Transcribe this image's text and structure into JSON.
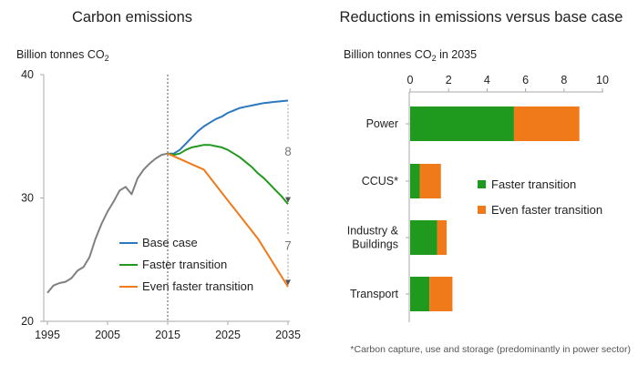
{
  "chart_data": [
    {
      "type": "line",
      "title": "Carbon emissions",
      "ylabel_main": "Billion tonnes CO",
      "ylabel_sub": "2",
      "xlim": [
        1995,
        2035
      ],
      "ylim": [
        20,
        40
      ],
      "x_ticks": [
        "1995",
        "2005",
        "2015",
        "2025",
        "2035"
      ],
      "y_ticks": [
        "20",
        "30",
        "40"
      ],
      "divider_year": 2015,
      "series": [
        {
          "name": "",
          "color": "#808080",
          "x": [
            1995,
            1996,
            1997,
            1998,
            1999,
            2000,
            2001,
            2002,
            2003,
            2004,
            2005,
            2006,
            2007,
            2008,
            2009,
            2010,
            2011,
            2012,
            2013,
            2014,
            2015
          ],
          "y": [
            22.3,
            22.9,
            23.1,
            23.2,
            23.5,
            24.1,
            24.4,
            25.2,
            26.7,
            27.9,
            28.9,
            29.7,
            30.6,
            30.9,
            30.3,
            31.6,
            32.3,
            32.8,
            33.2,
            33.5,
            33.6
          ]
        },
        {
          "name": "Base case",
          "color": "#2b78c0",
          "x": [
            2015,
            2016,
            2017,
            2018,
            2019,
            2020,
            2021,
            2022,
            2023,
            2024,
            2025,
            2026,
            2027,
            2028,
            2029,
            2030,
            2031,
            2032,
            2033,
            2034,
            2035
          ],
          "y": [
            33.6,
            33.6,
            33.9,
            34.4,
            34.9,
            35.4,
            35.8,
            36.1,
            36.4,
            36.6,
            36.9,
            37.1,
            37.3,
            37.4,
            37.5,
            37.6,
            37.7,
            37.75,
            37.8,
            37.85,
            37.9
          ]
        },
        {
          "name": "Faster transition",
          "color": "#1f9a1f",
          "x": [
            2015,
            2016,
            2017,
            2018,
            2019,
            2020,
            2021,
            2022,
            2023,
            2024,
            2025,
            2026,
            2027,
            2028,
            2029,
            2030,
            2031,
            2032,
            2033,
            2034,
            2035
          ],
          "y": [
            33.6,
            33.5,
            33.6,
            33.9,
            34.1,
            34.2,
            34.3,
            34.3,
            34.2,
            34.1,
            33.9,
            33.6,
            33.3,
            32.9,
            32.5,
            32.0,
            31.6,
            31.1,
            30.6,
            30.1,
            29.5
          ]
        },
        {
          "name": "Even faster transition",
          "color": "#f07a1a",
          "x": [
            2015,
            2021,
            2025,
            2030,
            2035
          ],
          "y": [
            33.6,
            32.3,
            29.8,
            26.7,
            22.8
          ]
        }
      ],
      "legend": [
        "Base case",
        "Faster transition",
        "Even faster transition"
      ],
      "annotations": [
        {
          "text": "8",
          "x": 2035,
          "from": 37.9,
          "to": 29.7
        },
        {
          "text": "7",
          "x": 2035,
          "from": 29.3,
          "to": 23.0
        }
      ]
    },
    {
      "type": "bar",
      "orientation": "horizontal",
      "stacked": true,
      "title": "Reductions in emissions versus base case",
      "xlabel_main": "Billion tonnes CO",
      "xlabel_sub": "2",
      "xlabel_tail": " in 2035",
      "xlim": [
        0,
        10
      ],
      "x_ticks": [
        "0",
        "2",
        "4",
        "6",
        "8",
        "10"
      ],
      "categories": [
        "Power",
        "CCUS*",
        "Industry &\nBuildings",
        "Transport"
      ],
      "series": [
        {
          "name": "Faster transition",
          "color": "#1f9a1f",
          "values": [
            5.4,
            0.5,
            1.4,
            1.0
          ]
        },
        {
          "name": "Even faster transition",
          "color": "#f07a1a",
          "values": [
            3.4,
            1.1,
            0.5,
            1.2
          ]
        }
      ],
      "legend": [
        "Faster transition",
        "Even faster transition"
      ],
      "footnote": "*Carbon capture, use and storage (predominantly in power sector)"
    }
  ]
}
